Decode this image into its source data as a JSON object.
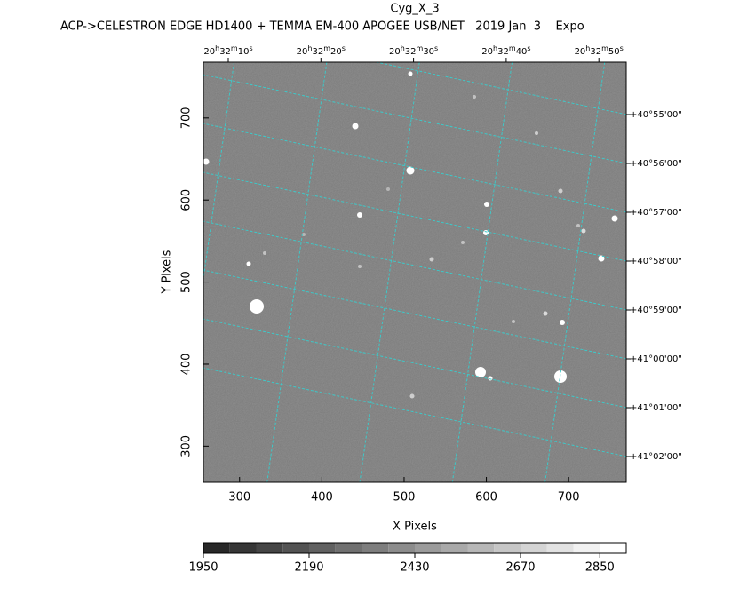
{
  "chart_data": {
    "type": "image",
    "title": "Cyg_X_3",
    "subtitle": "ACP->CELESTRON EDGE HD1400 + TEMMA EM-400 APOGEE USB/NET   2019 Jan  3    Expo",
    "xlabel": "X Pixels",
    "ylabel": "Y Pixels",
    "xlim": [
      256,
      770
    ],
    "ylim": [
      256,
      768
    ],
    "xticks": [
      300,
      400,
      500,
      600,
      700
    ],
    "yticks": [
      300,
      400,
      500,
      600,
      700
    ],
    "ra_labels": [
      "20h32m10s",
      "20h32m20s",
      "20h32m30s",
      "20h32m40s",
      "20h32m50s"
    ],
    "dec_labels": [
      "+40°55'00\"",
      "+40°56'00\"",
      "+40°57'00\"",
      "+40°58'00\"",
      "+40°59'00\"",
      "+41°00'00\"",
      "+41°01'00\"",
      "+41°02'00\""
    ],
    "colorbar": {
      "lim": [
        1950,
        2910
      ],
      "ticks": [
        1950,
        2190,
        2430,
        2670,
        2850
      ]
    }
  }
}
